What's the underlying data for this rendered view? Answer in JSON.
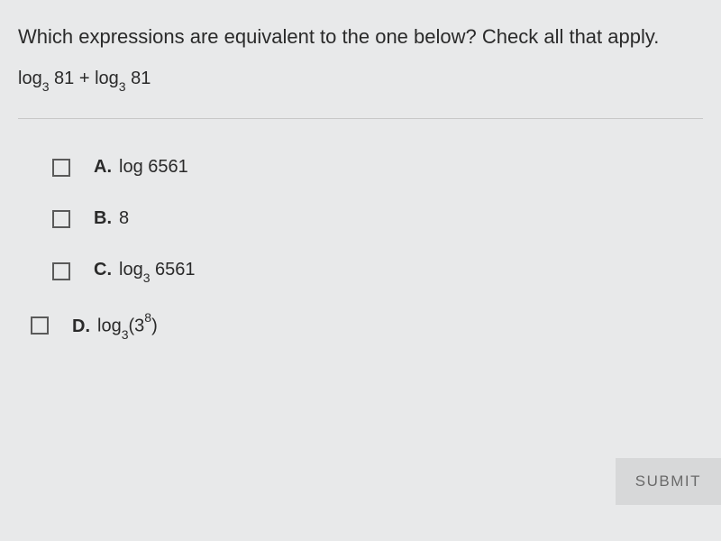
{
  "question": {
    "prompt": "Which expressions are equivalent to the one below? Check all that apply.",
    "expression_prefix1": "log",
    "expression_sub1": "3",
    "expression_mid1": " 81 + log",
    "expression_sub2": "3",
    "expression_suffix": " 81"
  },
  "options": {
    "a": {
      "letter": "A.",
      "text": "log 6561"
    },
    "b": {
      "letter": "B.",
      "text": "8"
    },
    "c": {
      "letter": "C.",
      "prefix": "log",
      "sub": "3",
      "suffix": " 6561"
    },
    "d": {
      "letter": "D.",
      "prefix": "log",
      "sub": "3",
      "mid": "(3",
      "sup": "8",
      "suffix": ")"
    }
  },
  "buttons": {
    "submit": "SUBMIT"
  },
  "colors": {
    "background": "#e8e9ea",
    "text": "#2a2a2a",
    "checkbox_border": "#5a5a5a",
    "divider": "#c8c8c8",
    "submit_bg": "#d7d8d9",
    "submit_text": "#6a6a6a"
  }
}
